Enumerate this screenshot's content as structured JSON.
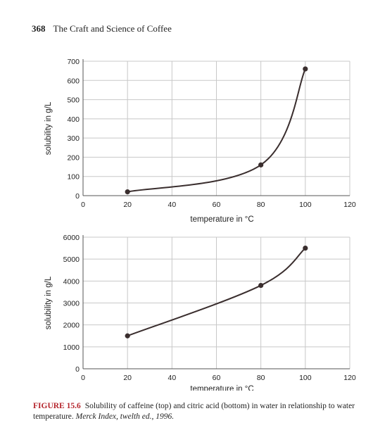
{
  "header": {
    "page_number": "368",
    "book_title": "The Craft and Science of Coffee"
  },
  "chart_data": [
    {
      "type": "line",
      "title": "",
      "xlabel": "temperature in °C",
      "ylabel": "solubility in g/L",
      "xlim": [
        0,
        120
      ],
      "ylim": [
        0,
        700
      ],
      "xticks": [
        0,
        20,
        40,
        60,
        80,
        100,
        120
      ],
      "yticks": [
        0,
        100,
        200,
        300,
        400,
        500,
        600,
        700
      ],
      "grid": true,
      "series": [
        {
          "x": [
            20,
            80,
            100
          ],
          "y": [
            20,
            160,
            660
          ]
        }
      ]
    },
    {
      "type": "line",
      "title": "",
      "xlabel": "temperature in °C",
      "ylabel": "solubility in g/L",
      "xlim": [
        0,
        120
      ],
      "ylim": [
        0,
        6000
      ],
      "xticks": [
        0,
        20,
        40,
        60,
        80,
        100,
        120
      ],
      "yticks": [
        0,
        1000,
        2000,
        3000,
        4000,
        5000,
        6000
      ],
      "grid": true,
      "series": [
        {
          "x": [
            20,
            80,
            100
          ],
          "y": [
            1500,
            3800,
            5500
          ]
        }
      ]
    }
  ],
  "caption": {
    "label": "FIGURE 15.6",
    "text": "Solubility of caffeine (top) and citric acid (bottom) in water in relationship to water temperature.",
    "source": "Merck Index, twelth ed., 1996."
  },
  "colors": {
    "line": "#3a2e2e",
    "grid": "#c8c8c8",
    "caption_label": "#b5262d"
  }
}
